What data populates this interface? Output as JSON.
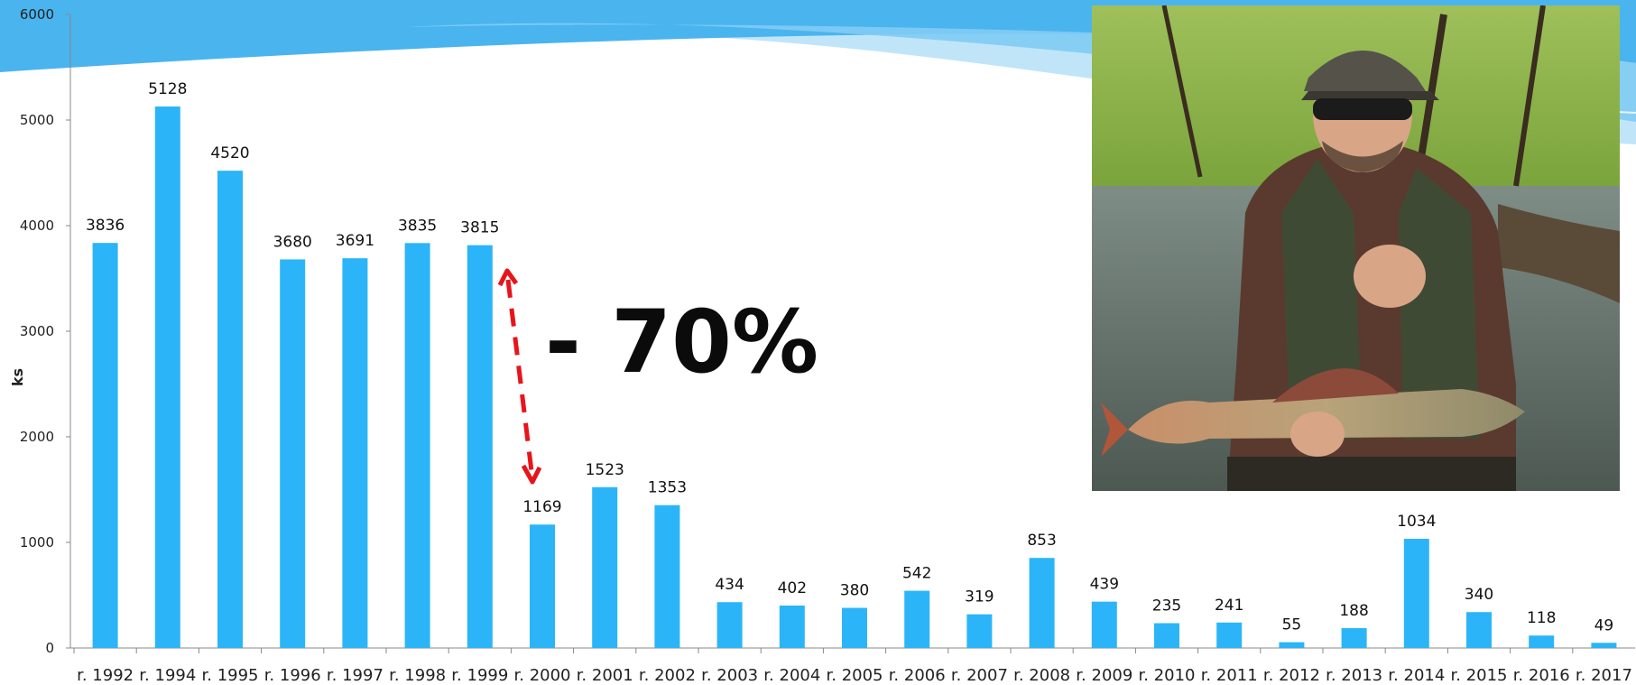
{
  "annotation": {
    "drop_text": "- 70%"
  },
  "photo": {
    "description": "angler-holding-grayling"
  },
  "colors": {
    "bar": "#2BB5F8",
    "arrow": "#E8141B",
    "wave_dark": "#4AB4EE",
    "wave_light": "#9ED8F8"
  },
  "chart_data": {
    "type": "bar",
    "categories": [
      "r. 1992",
      "r. 1994",
      "r. 1995",
      "r. 1996",
      "r. 1997",
      "r. 1998",
      "r. 1999",
      "r. 2000",
      "r. 2001",
      "r. 2002",
      "r. 2003",
      "r. 2004",
      "r. 2005",
      "r. 2006",
      "r. 2007",
      "r. 2008",
      "r. 2009",
      "r. 2010",
      "r. 2011",
      "r. 2012",
      "r. 2013",
      "r. 2014",
      "r. 2015",
      "r. 2016",
      "r. 2017"
    ],
    "values": [
      3836,
      5128,
      4520,
      3680,
      3691,
      3835,
      3815,
      1169,
      1523,
      1353,
      434,
      402,
      380,
      542,
      319,
      853,
      439,
      235,
      241,
      55,
      188,
      1034,
      340,
      118,
      49
    ],
    "ylabel": "ks",
    "ylim": [
      0,
      6000
    ],
    "yticks": [
      0,
      1000,
      2000,
      3000,
      4000,
      5000,
      6000
    ],
    "grid": false,
    "legend": "none"
  }
}
